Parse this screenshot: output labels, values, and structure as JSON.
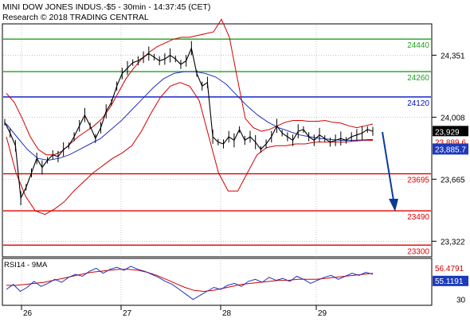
{
  "header": {
    "line1": "MINI DOW JONES INDUS.-$5 - 30min - 14:37:45 (CET)",
    "line2": "Research © 2018 TRADING CENTRAL"
  },
  "rsi_label": "RSI14 - 9MA",
  "colors": {
    "price": "#000000",
    "bollinger": "#d00000",
    "ma": "#2030c0",
    "resistance": "#20a020",
    "pivot": "#0010c0",
    "support": "#e00000",
    "arrow": "#0a3a9a",
    "grid": "#a0a0a0"
  },
  "chart_data": [
    {
      "type": "line",
      "name": "price",
      "y_axis_ticks": [
        "24,351",
        "24,008",
        "23,665",
        "23,322"
      ],
      "ylim": [
        23240,
        24520
      ],
      "x_axis_ticks": [
        "26",
        "27",
        "28",
        "29"
      ],
      "levels": [
        {
          "label": "24440",
          "value": 24440,
          "kind": "resistance"
        },
        {
          "label": "24260",
          "value": 24260,
          "kind": "resistance"
        },
        {
          "label": "24120",
          "value": 24120,
          "kind": "pivot"
        },
        {
          "label": "23695",
          "value": 23695,
          "kind": "support"
        },
        {
          "label": "23490",
          "value": 23490,
          "kind": "support"
        },
        {
          "label": "23300",
          "value": 23300,
          "kind": "support"
        }
      ],
      "last_price_label": "23,929",
      "bb_label": "23,889.6",
      "ma_label": "23,885.7",
      "close": [
        23980,
        23920,
        23850,
        23560,
        23620,
        23700,
        23780,
        23730,
        23770,
        23800,
        23790,
        23830,
        23850,
        23900,
        23960,
        24020,
        23960,
        23890,
        23950,
        24040,
        24090,
        24180,
        24250,
        24280,
        24310,
        24320,
        24340,
        24360,
        24340,
        24320,
        24330,
        24350,
        24330,
        24300,
        24320,
        24390,
        24250,
        24180,
        24200,
        23900,
        23870,
        23860,
        23900,
        23880,
        23940,
        23880,
        23900,
        23870,
        23830,
        23860,
        23900,
        23960,
        23920,
        23900,
        23880,
        23930,
        23940,
        23900,
        23880,
        23910,
        23890,
        23870,
        23880,
        23890,
        23880,
        23900,
        23910,
        23920,
        23940,
        23930
      ],
      "bollinger_upper": [
        24140,
        24090,
        24000,
        23900,
        23830,
        23800,
        23800,
        23820,
        23860,
        23900,
        23930,
        23960,
        24000,
        24060,
        24140,
        24220,
        24280,
        24330,
        24370,
        24400,
        24420,
        24440,
        24450,
        24450,
        24460,
        24470,
        24480,
        24550,
        24450,
        24220,
        24000,
        23950,
        23930,
        23940,
        23960,
        23980,
        23990,
        23990,
        23985,
        23985,
        23990,
        23980,
        23975,
        23960,
        23950,
        23960,
        23970
      ],
      "bollinger_lower": [
        23900,
        23700,
        23570,
        23490,
        23470,
        23500,
        23540,
        23600,
        23650,
        23700,
        23740,
        23780,
        23810,
        23850,
        23930,
        24030,
        24120,
        24180,
        24200,
        24180,
        24100,
        23900,
        23700,
        23600,
        23600,
        23700,
        23800,
        23840,
        23850,
        23850,
        23860,
        23860,
        23870,
        23870,
        23870,
        23870,
        23875,
        23880,
        23880
      ],
      "moving_average": [
        23970,
        23900,
        23830,
        23780,
        23770,
        23780,
        23800,
        23830,
        23860,
        23890,
        23940,
        23990,
        24050,
        24110,
        24170,
        24220,
        24250,
        24260,
        24260,
        24250,
        24230,
        24190,
        24130,
        24070,
        24020,
        23980,
        23950,
        23930,
        23910,
        23900,
        23890,
        23885,
        23880,
        23880,
        23882,
        23885
      ]
    },
    {
      "type": "line",
      "name": "RSI14 - 9MA",
      "y_axis_ticks": [
        "30"
      ],
      "ylim": [
        25,
        70
      ],
      "labels": [
        "56.4791",
        "55.1191"
      ],
      "rsi": [
        40,
        45,
        38,
        42,
        48,
        43,
        46,
        50,
        47,
        52,
        55,
        53,
        58,
        61,
        56,
        60,
        62,
        59,
        63,
        60,
        58,
        55,
        52,
        48,
        45,
        40,
        35,
        30,
        34,
        38,
        42,
        40,
        44,
        46,
        43,
        48,
        50,
        47,
        52,
        49,
        51,
        48,
        53,
        50,
        46,
        49,
        52,
        54,
        50,
        53,
        56,
        54,
        57,
        55
      ],
      "ma": [
        44,
        44,
        45,
        46,
        47,
        49,
        51,
        53,
        55,
        57,
        58,
        59,
        60,
        60,
        59,
        57,
        54,
        50,
        46,
        42,
        39,
        38,
        39,
        41,
        43,
        45,
        46,
        47,
        48,
        49,
        49,
        50,
        50,
        50,
        51,
        52,
        53,
        54,
        55,
        56
      ]
    }
  ]
}
